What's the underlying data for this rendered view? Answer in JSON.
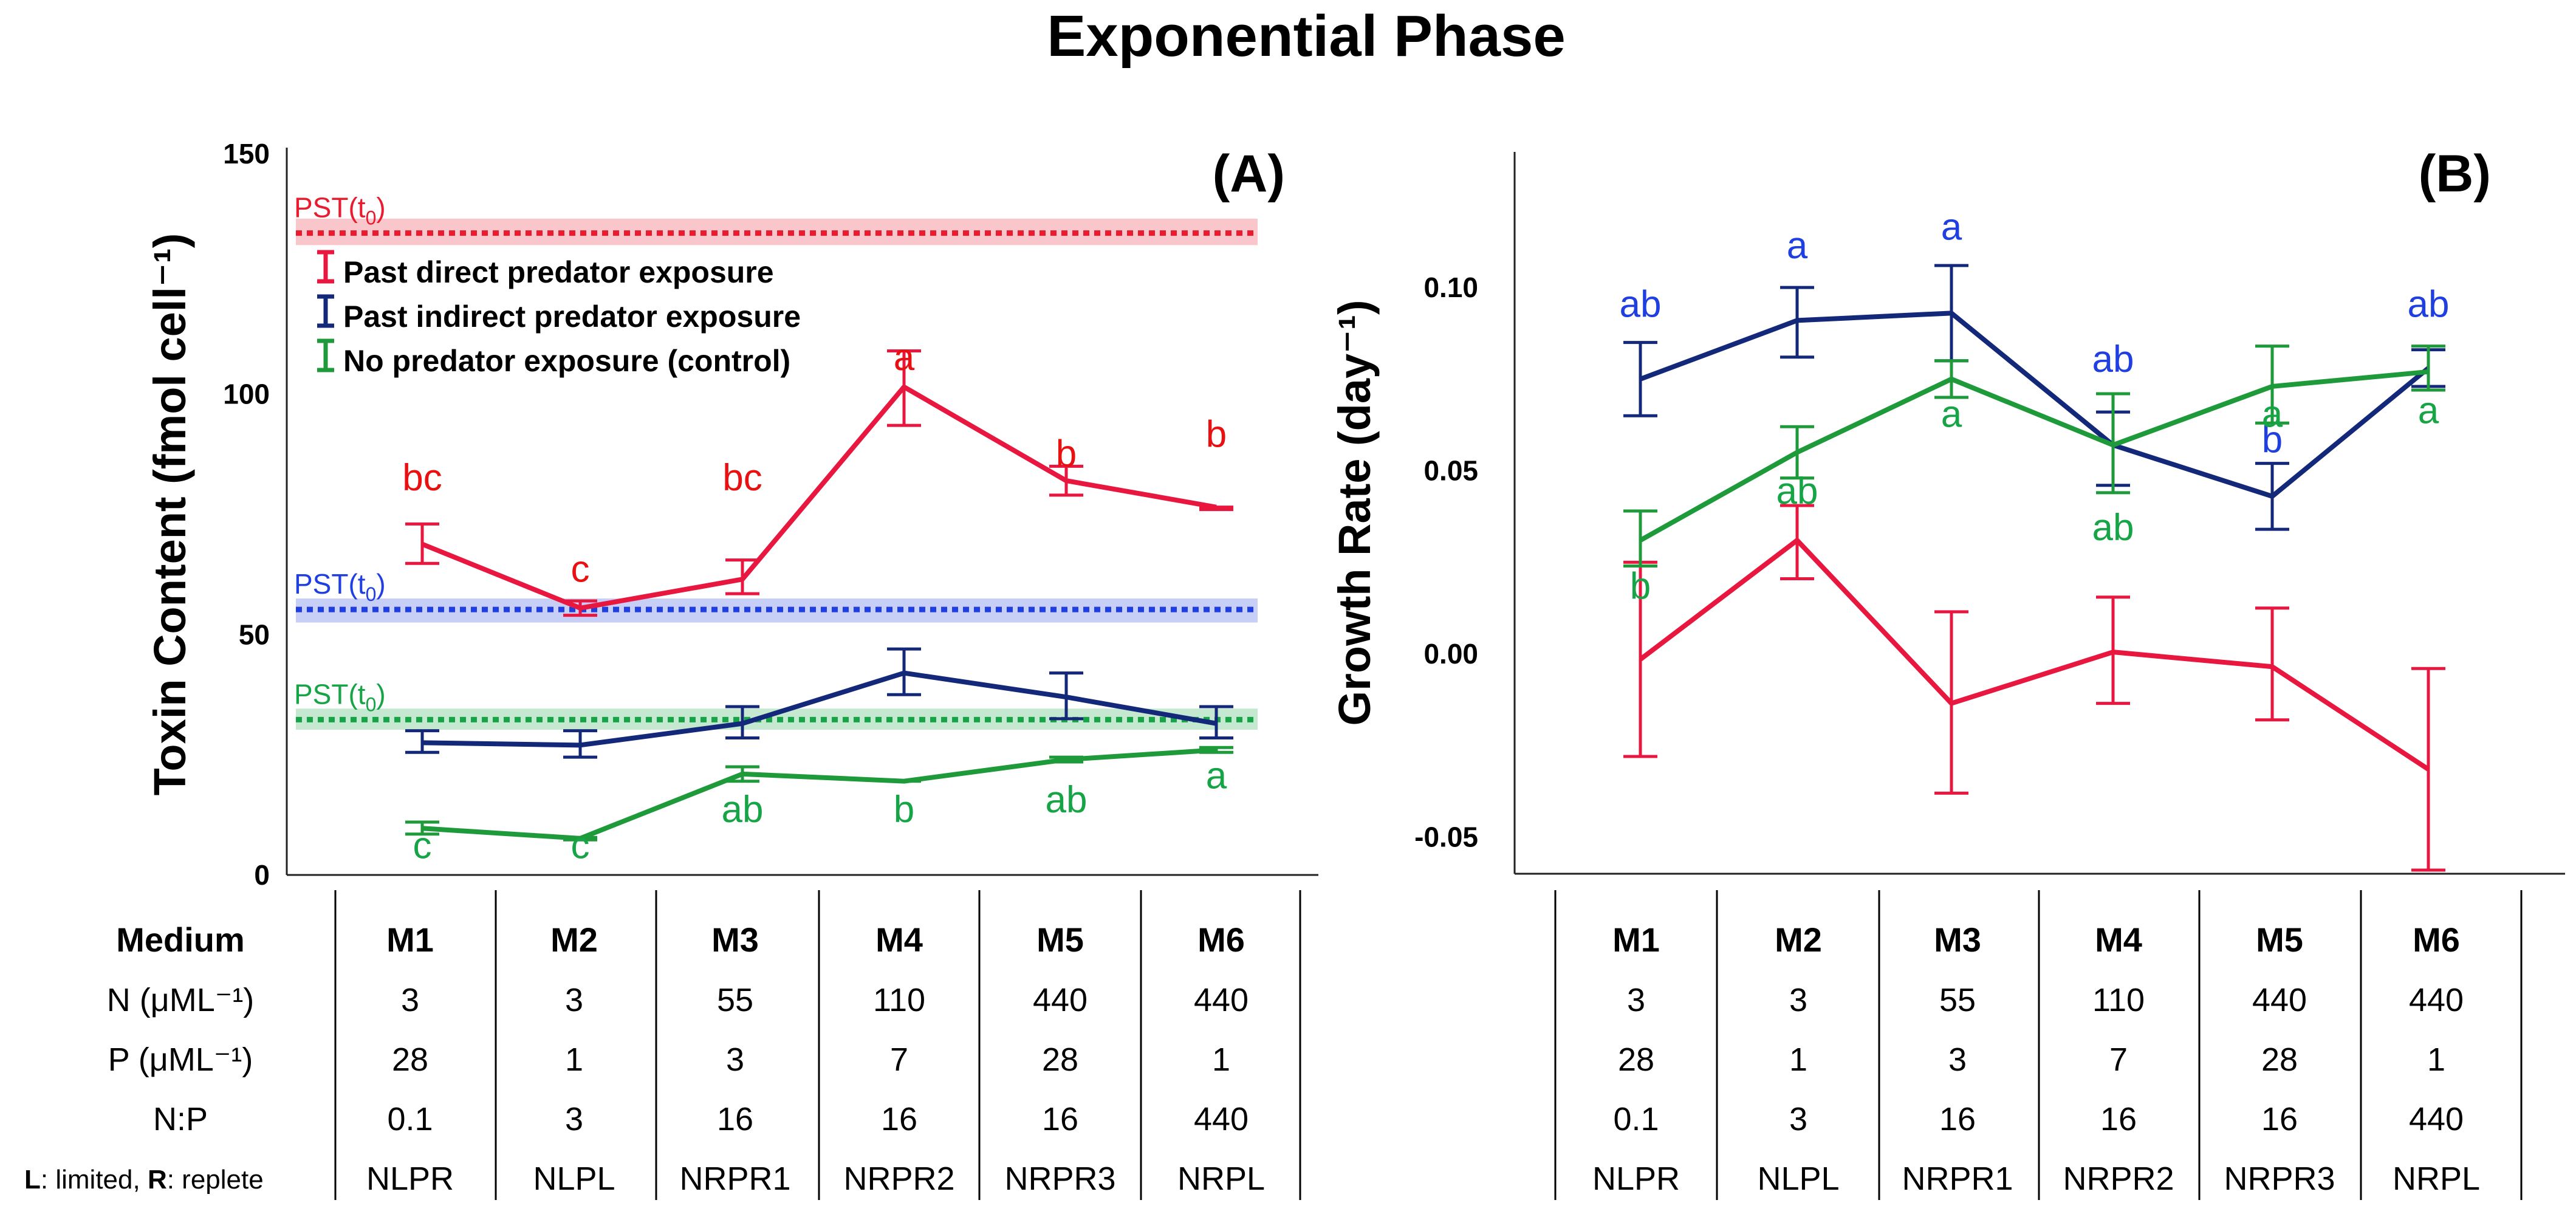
{
  "figure_title": "Exponential Phase",
  "colors": {
    "direct": "#e8173f",
    "indirect": "#14287a",
    "control": "#1e9a3a",
    "pst_red": "#e81c2e",
    "pst_blue": "#1f3fe0",
    "pst_green": "#17a447",
    "letter_red": "#e81010",
    "letter_blue": "#1f3fe0",
    "letter_green": "#17a447",
    "axis": "#222222"
  },
  "legend": {
    "direct": "Past direct predator exposure",
    "indirect": "Past indirect predator exposure",
    "control": "No predator exposure (control)"
  },
  "table": {
    "row_labels": [
      "Medium",
      "N (μML⁻¹)",
      "P (μML⁻¹)",
      "N:P",
      "L: limited, R: replete"
    ],
    "footnote": {
      "L": "L",
      "limited": ": limited, ",
      "R": "R",
      "replete": ": replete"
    },
    "columns": [
      {
        "medium": "M1",
        "N": "3",
        "P": "28",
        "NP": "0.1",
        "code": "NLPR"
      },
      {
        "medium": "M2",
        "N": "3",
        "P": "1",
        "NP": "3",
        "code": "NLPL"
      },
      {
        "medium": "M3",
        "N": "55",
        "P": "3",
        "NP": "16",
        "code": "NRPR1"
      },
      {
        "medium": "M4",
        "N": "110",
        "P": "7",
        "NP": "16",
        "code": "NRPR2"
      },
      {
        "medium": "M5",
        "N": "440",
        "P": "28",
        "NP": "16",
        "code": "NRPR3"
      },
      {
        "medium": "M6",
        "N": "440",
        "P": "1",
        "NP": "440",
        "code": "NRPL"
      }
    ]
  },
  "chart_data": [
    {
      "type": "line",
      "panel": "(A)",
      "ylabel": "Toxin Content (fmol cell⁻¹)",
      "ylim": [
        0,
        150
      ],
      "yticks": [
        0,
        50,
        100,
        150
      ],
      "categories": [
        "M1",
        "M2",
        "M3",
        "M4",
        "M5",
        "M6"
      ],
      "reference_lines": [
        {
          "label": "PST(t",
          "sub": "0",
          "close": ")",
          "value": 133.5,
          "band": [
            131,
            136.5
          ],
          "color": "pst_red"
        },
        {
          "label": "PST(t",
          "sub": "0",
          "close": ")",
          "value": 55.2,
          "band": [
            52.5,
            57.5
          ],
          "color": "pst_blue"
        },
        {
          "label": "PST(t",
          "sub": "0",
          "close": ")",
          "value": 32.3,
          "band": [
            30.2,
            34.6
          ],
          "color": "pst_green"
        }
      ],
      "series": [
        {
          "name": "Past direct predator exposure",
          "key": "direct",
          "values": [
            68.8,
            55.5,
            61.5,
            101.5,
            82,
            76.5
          ],
          "err_low": [
            64.8,
            54,
            58.5,
            93.5,
            79,
            76
          ],
          "err_high": [
            73,
            57,
            65.5,
            109,
            85,
            76.5
          ],
          "letters": [
            "bc",
            "c",
            "bc",
            "a",
            "b",
            "b"
          ],
          "letter_y": [
            80,
            61,
            80,
            105,
            85,
            89
          ]
        },
        {
          "name": "Past indirect predator exposure",
          "key": "indirect",
          "values": [
            27.5,
            27,
            31.5,
            42,
            37,
            31.5
          ],
          "err_low": [
            25.5,
            24.5,
            28.5,
            37.5,
            32.5,
            28.5
          ],
          "err_high": [
            30,
            30,
            35,
            47,
            42,
            35
          ],
          "letters": [],
          "letter_y": []
        },
        {
          "name": "No predator exposure (control)",
          "key": "control",
          "values": [
            9.7,
            7.6,
            21,
            19.5,
            24,
            26
          ],
          "err_low": [
            8.5,
            7.3,
            19.5,
            19.5,
            23.5,
            25.5
          ],
          "err_high": [
            11,
            7.8,
            22.5,
            19.5,
            24.5,
            26.5
          ],
          "letters": [
            "c",
            "c",
            "ab",
            "b",
            "ab",
            "a"
          ],
          "letter_y": [
            3.5,
            3.5,
            11,
            11,
            13,
            18
          ]
        }
      ]
    },
    {
      "type": "line",
      "panel": "(B)",
      "ylabel": "Growth Rate (day⁻¹)",
      "ylim": [
        -0.06,
        0.137
      ],
      "yticks": [
        -0.05,
        0.0,
        0.05,
        0.1
      ],
      "ytick_labels": [
        "-0.05",
        "0.00",
        "0.05",
        "0.10"
      ],
      "categories": [
        "M1",
        "M2",
        "M3",
        "M4",
        "M5",
        "M6"
      ],
      "series": [
        {
          "name": "Past direct predator exposure",
          "key": "direct",
          "values": [
            -0.0015,
            0.031,
            -0.0135,
            0.0005,
            -0.0035,
            -0.0315
          ],
          "err_low": [
            -0.028,
            0.0205,
            -0.038,
            -0.0135,
            -0.018,
            -0.059
          ],
          "err_high": [
            0.025,
            0.0405,
            0.0115,
            0.0155,
            0.0125,
            -0.004
          ],
          "letters": [],
          "letter_y": []
        },
        {
          "name": "Past indirect predator exposure",
          "key": "indirect",
          "values": [
            0.075,
            0.091,
            0.093,
            0.057,
            0.043,
            0.078
          ],
          "err_low": [
            0.065,
            0.081,
            0.08,
            0.046,
            0.034,
            0.073
          ],
          "err_high": [
            0.085,
            0.1,
            0.106,
            0.066,
            0.052,
            0.083
          ],
          "letters": [
            "ab",
            "a",
            "a",
            "ab",
            "b",
            "ab"
          ],
          "letter_y": [
            0.092,
            0.108,
            0.113,
            0.077,
            0.055,
            0.092
          ]
        },
        {
          "name": "No predator exposure (control)",
          "key": "control",
          "values": [
            0.031,
            0.055,
            0.075,
            0.057,
            0.073,
            0.077
          ],
          "err_low": [
            0.024,
            0.048,
            0.07,
            0.044,
            0.063,
            0.072
          ],
          "err_high": [
            0.039,
            0.062,
            0.08,
            0.071,
            0.084,
            0.084
          ],
          "letters": [
            "b",
            "ab",
            "a",
            "ab",
            "a",
            "a"
          ],
          "letter_y": [
            0.015,
            0.041,
            0.062,
            0.031,
            0.062,
            0.063
          ]
        }
      ]
    }
  ]
}
